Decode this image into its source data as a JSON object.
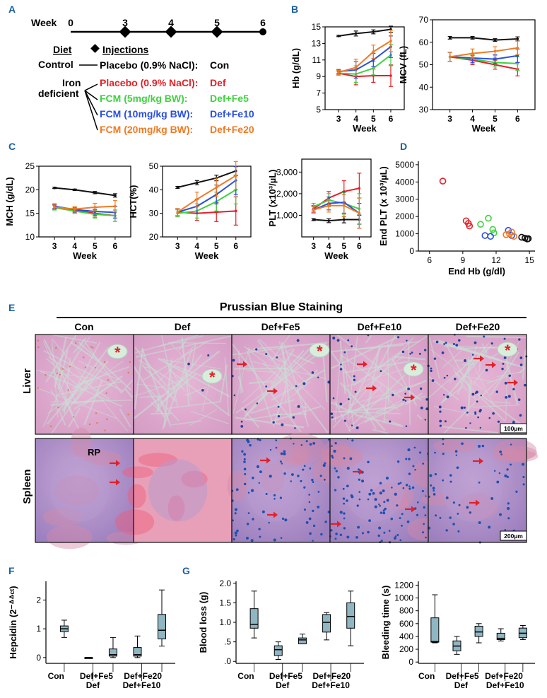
{
  "colors": {
    "con": "#111111",
    "def": "#e41f26",
    "fe5": "#3fd23f",
    "fe10": "#2a4fe0",
    "fe20": "#f07a23",
    "panel_label": "#1b5f9e",
    "box_fill": "#8fb6c2"
  },
  "panelA": {
    "label": "A",
    "week_label": "Week",
    "weeks": [
      "0",
      "3",
      "4",
      "5",
      "6"
    ],
    "diet_header": "Diet",
    "injections_header": "Injections",
    "control_label": "Control",
    "iron_label_1": "Iron",
    "iron_label_2": "deficient",
    "rows": [
      {
        "treatment": "Placebo (0.9% NaCl):",
        "code": "Con"
      },
      {
        "treatment": "Placebo (0.9% NaCl):",
        "code": "Def"
      },
      {
        "treatment": "FCM (5mg/kg BW):",
        "code": "Def+Fe5"
      },
      {
        "treatment": "FCM (10mg/kg BW):",
        "code": "Def+Fe10"
      },
      {
        "treatment": "FCM (20mg/kg BW):",
        "code": "Def+Fe20"
      }
    ]
  },
  "labels": {
    "B": "B",
    "C": "C",
    "D": "D",
    "E": "E",
    "F": "F",
    "G": "G"
  },
  "panelE": {
    "title": "Prussian Blue Staining",
    "columns": [
      "Con",
      "Def",
      "Def+Fe5",
      "Def+Fe10",
      "Def+Fe20"
    ],
    "rows": [
      "Liver",
      "Spleen"
    ],
    "rp_label": "RP",
    "scale_liver": "100µm",
    "scale_spleen": "200µm"
  },
  "chart_data": [
    {
      "id": "hb",
      "type": "line",
      "ylabel": "Hb (g/dL)",
      "xlabel": "Week",
      "x": [
        3,
        4,
        5,
        6
      ],
      "xticks": [
        "3",
        "4",
        "5",
        "6"
      ],
      "ylim": [
        5,
        15
      ],
      "yticks": [
        "5",
        "7",
        "9",
        "11",
        "13",
        "15"
      ],
      "series": [
        {
          "name": "Con",
          "values": [
            13.9,
            14.2,
            14.4,
            14.7
          ]
        },
        {
          "name": "Def",
          "values": [
            9.4,
            9.0,
            9.1,
            9.1
          ]
        },
        {
          "name": "Def+Fe5",
          "values": [
            9.4,
            9.3,
            10.0,
            11.6
          ]
        },
        {
          "name": "Def+Fe10",
          "values": [
            9.6,
            9.8,
            11.0,
            12.6
          ]
        },
        {
          "name": "Def+Fe20",
          "values": [
            9.5,
            10.1,
            12.0,
            13.3
          ]
        }
      ]
    },
    {
      "id": "mcv",
      "type": "line",
      "ylabel": "MCV (fL)",
      "xlabel": "Week",
      "x": [
        3,
        4,
        5,
        6
      ],
      "xticks": [
        "3",
        "4",
        "5",
        "6"
      ],
      "ylim": [
        30,
        70
      ],
      "yticks": [
        "30",
        "40",
        "50",
        "60",
        "70"
      ],
      "series": [
        {
          "name": "Con",
          "values": [
            62,
            62,
            61,
            61.5
          ]
        },
        {
          "name": "Def",
          "values": [
            53.5,
            52,
            50,
            48
          ]
        },
        {
          "name": "Def+Fe5",
          "values": [
            53.5,
            52.5,
            51,
            50.5
          ]
        },
        {
          "name": "Def+Fe10",
          "values": [
            53.5,
            53,
            52.5,
            54
          ]
        },
        {
          "name": "Def+Fe20",
          "values": [
            53.5,
            55,
            56,
            57.5
          ]
        }
      ]
    },
    {
      "id": "mch",
      "type": "line",
      "ylabel": "MCH (g/dL)",
      "xlabel": "Week",
      "x": [
        3,
        4,
        5,
        6
      ],
      "xticks": [
        "3",
        "4",
        "5",
        "6"
      ],
      "ylim": [
        10,
        25
      ],
      "yticks": [
        "10",
        "15",
        "20",
        "25"
      ],
      "series": [
        {
          "name": "Con",
          "values": [
            20.4,
            20.0,
            19.4,
            18.8
          ]
        },
        {
          "name": "Def",
          "values": [
            16.4,
            15.6,
            15.0,
            14.5
          ]
        },
        {
          "name": "Def+Fe5",
          "values": [
            16.2,
            15.5,
            14.8,
            14.5
          ]
        },
        {
          "name": "Def+Fe10",
          "values": [
            16.5,
            15.8,
            15.4,
            15.2
          ]
        },
        {
          "name": "Def+Fe20",
          "values": [
            16.3,
            15.9,
            16.3,
            16.5
          ]
        }
      ]
    },
    {
      "id": "hct",
      "type": "line",
      "ylabel": "HCT(%)",
      "xlabel": "Week",
      "x": [
        3,
        4,
        5,
        6
      ],
      "xticks": [
        "3",
        "4",
        "5",
        "6"
      ],
      "ylim": [
        20,
        50
      ],
      "yticks": [
        "20",
        "30",
        "40",
        "50"
      ],
      "series": [
        {
          "name": "Con",
          "values": [
            41,
            43,
            45,
            48
          ]
        },
        {
          "name": "Def",
          "values": [
            30.5,
            30,
            30.5,
            31
          ]
        },
        {
          "name": "Def+Fe5",
          "values": [
            30,
            31,
            35,
            40
          ]
        },
        {
          "name": "Def+Fe10",
          "values": [
            30.5,
            33,
            38,
            44
          ]
        },
        {
          "name": "Def+Fe20",
          "values": [
            30.5,
            36,
            41,
            46
          ]
        }
      ]
    },
    {
      "id": "plt",
      "type": "line",
      "ylabel": "PLT (x10³/µL)",
      "xlabel": "Week",
      "x": [
        3,
        4,
        5,
        6
      ],
      "xticks": [
        "3",
        "4",
        "5",
        "6"
      ],
      "ylim": [
        0,
        3600
      ],
      "yticks": [
        "1,000",
        "2,000",
        "3,000"
      ],
      "ytick_values": [
        1000,
        2000,
        3000
      ],
      "series": [
        {
          "name": "Con",
          "values": [
            800,
            750,
            800,
            800
          ]
        },
        {
          "name": "Def",
          "values": [
            1300,
            1800,
            2100,
            2250
          ]
        },
        {
          "name": "Def+Fe5",
          "values": [
            1400,
            1700,
            1550,
            1300
          ]
        },
        {
          "name": "Def+Fe10",
          "values": [
            1250,
            1550,
            1600,
            1100
          ]
        },
        {
          "name": "Def+Fe20",
          "values": [
            1250,
            1450,
            1450,
            1100
          ]
        }
      ]
    },
    {
      "id": "scatter",
      "type": "scatter",
      "xlabel": "End Hb (g/dl)",
      "ylabel": "End PLT (x 10³/µL)",
      "xlim": [
        5,
        15.5
      ],
      "xticks": [
        "6",
        "9",
        "12",
        "15"
      ],
      "xtick_values": [
        6,
        9,
        12,
        15
      ],
      "ylim": [
        0,
        5200
      ],
      "yticks": [
        "0",
        "1000",
        "2000",
        "3000",
        "4000",
        "5000"
      ],
      "series": [
        {
          "name": "Def",
          "points": [
            [
              7.2,
              4050
            ],
            [
              9.3,
              1750
            ],
            [
              9.5,
              1600
            ],
            [
              9.6,
              1450
            ]
          ]
        },
        {
          "name": "Def+Fe5",
          "points": [
            [
              10.6,
              1550
            ],
            [
              11.3,
              1900
            ],
            [
              11.7,
              1250
            ],
            [
              11.8,
              1050
            ]
          ]
        },
        {
          "name": "Def+Fe10",
          "points": [
            [
              11.0,
              900
            ],
            [
              11.5,
              850
            ],
            [
              13.1,
              1200
            ],
            [
              13.4,
              900
            ]
          ]
        },
        {
          "name": "Def+Fe20",
          "points": [
            [
              12.9,
              950
            ],
            [
              13.2,
              1000
            ],
            [
              13.4,
              1100
            ],
            [
              13.6,
              850
            ]
          ]
        },
        {
          "name": "Con",
          "points": [
            [
              14.3,
              800
            ],
            [
              14.6,
              750
            ],
            [
              14.8,
              700
            ],
            [
              14.9,
              720
            ]
          ]
        }
      ]
    },
    {
      "id": "hepcidin",
      "type": "box",
      "ylabel": "Hepcidin (2⁻ᐞᐞᶜᵗ)",
      "categories": [
        "Con",
        "Def",
        "Def+Fe5",
        "Def+Fe10",
        "Def+Fe20"
      ],
      "ylim": [
        -0.2,
        2.65
      ],
      "yticks": [
        "0",
        "1",
        "2"
      ],
      "ytick_values": [
        0,
        1,
        2
      ],
      "boxes": [
        {
          "min": 0.7,
          "q1": 0.9,
          "median": 1.0,
          "q3": 1.1,
          "max": 1.3
        },
        {
          "min": 0.0,
          "q1": 0.0,
          "median": 0.0,
          "q3": 0.0,
          "max": 0.0
        },
        {
          "min": 0.0,
          "q1": 0.05,
          "median": 0.1,
          "q3": 0.3,
          "max": 0.7
        },
        {
          "min": 0.0,
          "q1": 0.05,
          "median": 0.1,
          "q3": 0.35,
          "max": 0.75
        },
        {
          "min": 0.4,
          "q1": 0.65,
          "median": 0.95,
          "q3": 1.5,
          "max": 2.35
        }
      ]
    },
    {
      "id": "bloodloss",
      "type": "box",
      "ylabel": "Blood loss (g)",
      "categories": [
        "Con",
        "Def",
        "Def+Fe5",
        "Def+Fe10",
        "Def+Fe20"
      ],
      "ylim": [
        -0.05,
        2.05
      ],
      "yticks": [
        ".0",
        ".5",
        "1.0",
        "1.5",
        "2.0"
      ],
      "ytick_values": [
        0,
        0.5,
        1,
        1.5,
        2
      ],
      "boxes": [
        {
          "min": 0.6,
          "q1": 0.85,
          "median": 0.95,
          "q3": 1.35,
          "max": 1.8
        },
        {
          "min": 0.05,
          "q1": 0.15,
          "median": 0.3,
          "q3": 0.4,
          "max": 0.5
        },
        {
          "min": 0.45,
          "q1": 0.45,
          "median": 0.55,
          "q3": 0.6,
          "max": 0.7
        },
        {
          "min": 0.55,
          "q1": 0.75,
          "median": 1.0,
          "q3": 1.2,
          "max": 1.25
        },
        {
          "min": 0.4,
          "q1": 0.85,
          "median": 1.15,
          "q3": 1.5,
          "max": 1.8
        }
      ]
    },
    {
      "id": "bleedingtime",
      "type": "box",
      "ylabel": "Bleeding time (s)",
      "categories": [
        "Con",
        "Def",
        "Def+Fe5",
        "Def+Fe10",
        "Def+Fe20"
      ],
      "ylim": [
        -20,
        1260
      ],
      "yticks": [
        "0",
        "200",
        "400",
        "600",
        "800",
        "1000",
        "1200"
      ],
      "ytick_values": [
        0,
        200,
        400,
        600,
        800,
        1000,
        1200
      ],
      "boxes": [
        {
          "min": 300,
          "q1": 310,
          "median": 320,
          "q3": 690,
          "max": 1050
        },
        {
          "min": 120,
          "q1": 175,
          "median": 250,
          "q3": 330,
          "max": 400
        },
        {
          "min": 300,
          "q1": 400,
          "median": 470,
          "q3": 560,
          "max": 600
        },
        {
          "min": 330,
          "q1": 350,
          "median": 370,
          "q3": 450,
          "max": 520
        },
        {
          "min": 350,
          "q1": 380,
          "median": 450,
          "q3": 530,
          "max": 570
        }
      ]
    }
  ]
}
